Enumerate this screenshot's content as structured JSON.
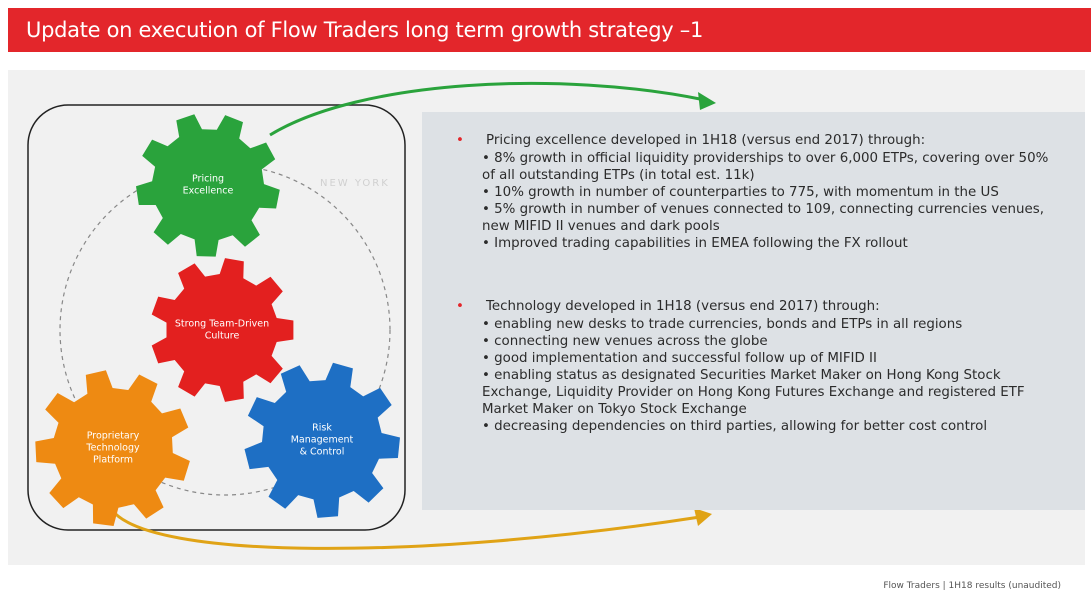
{
  "header": {
    "title": "Update on execution of Flow Traders long term growth strategy –1"
  },
  "diagram": {
    "map_label": "NEW YORK",
    "gears": [
      {
        "lines": [
          "Pricing",
          "Excellence"
        ],
        "color": "#2aa33c"
      },
      {
        "lines": [
          "Strong Team-Driven",
          "Culture"
        ],
        "color": "#e3201f"
      },
      {
        "lines": [
          "Proprietary",
          "Technology",
          "Platform"
        ],
        "color": "#ee8a12"
      },
      {
        "lines": [
          "Risk",
          "Management",
          "& Control"
        ],
        "color": "#1e6fc4"
      }
    ]
  },
  "sections": [
    {
      "heading": "Pricing excellence developed in 1H18 (versus end 2017) through:",
      "items": [
        "8% growth in official liquidity providerships to over 6,000 ETPs, covering over 50% of all outstanding ETPs (in total est. 11k)",
        "10% growth in number of counterparties to 775, with momentum in the US",
        "5% growth in number of venues connected to 109, connecting currencies venues, new MIFID II venues and dark pools",
        "Improved trading capabilities in EMEA following the FX rollout"
      ]
    },
    {
      "heading": "Technology developed in 1H18 (versus end 2017) through:",
      "items": [
        "enabling new desks to trade currencies, bonds and ETPs in all regions",
        "connecting new venues across the globe",
        "good implementation and successful follow up of MIFID II",
        "enabling status as designated Securities Market Maker on Hong Kong Stock Exchange, Liquidity Provider on Hong Kong Futures Exchange and registered ETF Market Maker on Tokyo Stock Exchange",
        "decreasing dependencies on third parties, allowing for better cost control"
      ]
    }
  ],
  "footer": "Flow Traders |   1H18 results (unaudited)"
}
